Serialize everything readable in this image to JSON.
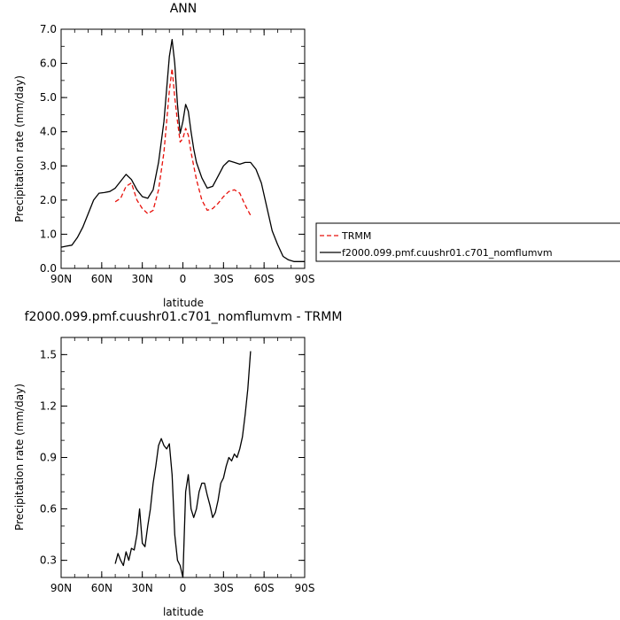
{
  "chart_data": [
    {
      "type": "line",
      "title": "ANN",
      "xlabel": "latitude",
      "ylabel": "Precipitation rate (mm/day)",
      "xlim": [
        90,
        -90
      ],
      "ylim": [
        0.0,
        7.0
      ],
      "x_ticks": [
        90,
        60,
        30,
        0,
        -30,
        -60,
        -90
      ],
      "x_tick_labels": [
        "90N",
        "60N",
        "30N",
        "0",
        "30S",
        "60S",
        "90S"
      ],
      "y_ticks": [
        0,
        1,
        2,
        3,
        4,
        5,
        6,
        7
      ],
      "y_tick_labels": [
        "0.0",
        "1.0",
        "2.0",
        "3.0",
        "4.0",
        "5.0",
        "6.0",
        "7.0"
      ],
      "legend_position": "right",
      "series": [
        {
          "name": "f2000.099.pmf.cuushr01.c701_nomflumvm",
          "color": "#000000",
          "dash": "solid",
          "x": [
            90,
            86,
            82,
            78,
            74,
            70,
            66,
            62,
            58,
            54,
            50,
            46,
            42,
            38,
            34,
            30,
            26,
            22,
            18,
            14,
            10,
            8,
            6,
            4,
            2,
            0,
            -2,
            -4,
            -6,
            -8,
            -10,
            -14,
            -18,
            -22,
            -26,
            -30,
            -34,
            -38,
            -42,
            -46,
            -50,
            -54,
            -58,
            -62,
            -66,
            -70,
            -74,
            -78,
            -82,
            -86,
            -90
          ],
          "y": [
            0.62,
            0.65,
            0.68,
            0.9,
            1.2,
            1.6,
            2.0,
            2.2,
            2.22,
            2.25,
            2.35,
            2.55,
            2.75,
            2.6,
            2.3,
            2.1,
            2.05,
            2.3,
            3.1,
            4.3,
            6.2,
            6.7,
            6.0,
            4.8,
            3.95,
            4.3,
            4.8,
            4.6,
            4.0,
            3.5,
            3.1,
            2.65,
            2.35,
            2.4,
            2.7,
            3.0,
            3.15,
            3.1,
            3.05,
            3.1,
            3.1,
            2.9,
            2.5,
            1.8,
            1.1,
            0.7,
            0.35,
            0.25,
            0.2,
            0.2,
            0.2
          ]
        },
        {
          "name": "TRMM",
          "color": "#e8120c",
          "dash": "dashed",
          "x": [
            50,
            46,
            42,
            38,
            34,
            30,
            26,
            22,
            18,
            14,
            10,
            8,
            6,
            4,
            2,
            0,
            -2,
            -4,
            -6,
            -8,
            -10,
            -14,
            -18,
            -22,
            -26,
            -30,
            -34,
            -38,
            -42,
            -46,
            -50
          ],
          "y": [
            1.95,
            2.05,
            2.4,
            2.5,
            2.0,
            1.75,
            1.6,
            1.7,
            2.3,
            3.4,
            5.2,
            5.85,
            5.0,
            4.3,
            3.7,
            3.8,
            4.1,
            3.9,
            3.4,
            3.0,
            2.6,
            2.0,
            1.7,
            1.75,
            1.9,
            2.1,
            2.25,
            2.3,
            2.2,
            1.85,
            1.55
          ]
        }
      ]
    },
    {
      "type": "line",
      "title": "f2000.099.pmf.cuushr01.c701_nomflumvm - TRMM",
      "xlabel": "latitude",
      "ylabel": "Precipitation rate (mm/day)",
      "xlim": [
        90,
        -90
      ],
      "ylim": [
        0.2,
        1.6
      ],
      "x_ticks": [
        90,
        60,
        30,
        0,
        -30,
        -60,
        -90
      ],
      "x_tick_labels": [
        "90N",
        "60N",
        "30N",
        "0",
        "30S",
        "60S",
        "90S"
      ],
      "y_ticks": [
        0.3,
        0.6,
        0.9,
        1.2,
        1.5
      ],
      "y_tick_labels": [
        "0.3",
        "0.6",
        "0.9",
        "1.2",
        "1.5"
      ],
      "series": [
        {
          "color": "#000000",
          "dash": "solid",
          "x": [
            50,
            48,
            46,
            44,
            42,
            40,
            38,
            36,
            34,
            32,
            30,
            28,
            26,
            24,
            22,
            20,
            18,
            16,
            14,
            12,
            10,
            8,
            6,
            4,
            2,
            0,
            -2,
            -4,
            -6,
            -8,
            -10,
            -12,
            -14,
            -16,
            -18,
            -20,
            -22,
            -24,
            -26,
            -28,
            -30,
            -32,
            -34,
            -36,
            -38,
            -40,
            -42,
            -44,
            -46,
            -48,
            -50
          ],
          "y": [
            0.28,
            0.34,
            0.3,
            0.27,
            0.35,
            0.3,
            0.37,
            0.36,
            0.45,
            0.6,
            0.4,
            0.38,
            0.5,
            0.6,
            0.75,
            0.85,
            0.97,
            1.01,
            0.97,
            0.95,
            0.98,
            0.8,
            0.45,
            0.3,
            0.27,
            0.2,
            0.7,
            0.8,
            0.6,
            0.55,
            0.6,
            0.7,
            0.75,
            0.75,
            0.68,
            0.62,
            0.55,
            0.58,
            0.65,
            0.75,
            0.78,
            0.85,
            0.9,
            0.88,
            0.92,
            0.9,
            0.95,
            1.02,
            1.15,
            1.3,
            1.52
          ]
        }
      ]
    }
  ]
}
